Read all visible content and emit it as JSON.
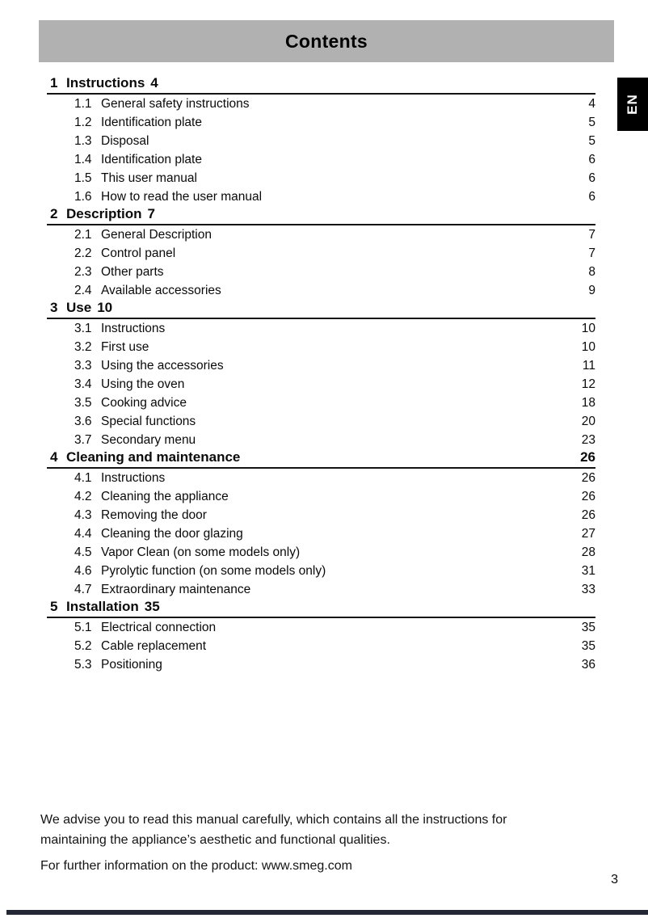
{
  "colors": {
    "header_bar": "#b1b1b1",
    "text": "#0a0a0a",
    "language_tab_bg": "#000000",
    "language_tab_text": "#ffffff",
    "bottom_bar": "#242834"
  },
  "header": {
    "title": "Contents"
  },
  "language_tab": {
    "label": "EN"
  },
  "toc": {
    "sections": [
      {
        "number": "1",
        "title": "Instructions",
        "inline_page": "4",
        "page": "",
        "items": [
          {
            "number": "1.1",
            "title": "General safety instructions",
            "page": "4"
          },
          {
            "number": "1.2",
            "title": "Identification plate",
            "page": "5"
          },
          {
            "number": "1.3",
            "title": "Disposal",
            "page": "5"
          },
          {
            "number": "1.4",
            "title": "Identification plate",
            "page": "6"
          },
          {
            "number": "1.5",
            "title": "This user manual",
            "page": "6"
          },
          {
            "number": "1.6",
            "title": "How to read the user manual",
            "page": "6"
          }
        ]
      },
      {
        "number": "2",
        "title": "Description",
        "inline_page": "7",
        "page": "",
        "items": [
          {
            "number": "2.1",
            "title": "General Description",
            "page": "7"
          },
          {
            "number": "2.2",
            "title": "Control panel",
            "page": "7"
          },
          {
            "number": "2.3",
            "title": "Other parts",
            "page": "8"
          },
          {
            "number": "2.4",
            "title": "Available accessories",
            "page": "9"
          }
        ]
      },
      {
        "number": "3",
        "title": "Use",
        "inline_page": "10",
        "page": "",
        "items": [
          {
            "number": "3.1",
            "title": "Instructions",
            "page": "10"
          },
          {
            "number": "3.2",
            "title": "First use",
            "page": "10"
          },
          {
            "number": "3.3",
            "title": "Using the accessories",
            "page": "11"
          },
          {
            "number": "3.4",
            "title": "Using the oven",
            "page": "12"
          },
          {
            "number": "3.5",
            "title": "Cooking advice",
            "page": "18"
          },
          {
            "number": "3.6",
            "title": "Special functions",
            "page": "20"
          },
          {
            "number": "3.7",
            "title": "Secondary menu",
            "page": "23"
          }
        ]
      },
      {
        "number": "4",
        "title": "Cleaning and maintenance",
        "inline_page": "",
        "page": "26",
        "items": [
          {
            "number": "4.1",
            "title": "Instructions",
            "page": "26"
          },
          {
            "number": "4.2",
            "title": "Cleaning the appliance",
            "page": "26"
          },
          {
            "number": "4.3",
            "title": "Removing the door",
            "page": "26"
          },
          {
            "number": "4.4",
            "title": "Cleaning the door glazing",
            "page": "27"
          },
          {
            "number": "4.5",
            "title": "Vapor Clean (on some models only)",
            "page": "28"
          },
          {
            "number": "4.6",
            "title": "Pyrolytic function (on some models only)",
            "page": "31"
          },
          {
            "number": "4.7",
            "title": "Extraordinary maintenance",
            "page": "33"
          }
        ]
      },
      {
        "number": "5",
        "title": "Installation",
        "inline_page": "35",
        "page": "",
        "items": [
          {
            "number": "5.1",
            "title": "Electrical connection",
            "page": "35"
          },
          {
            "number": "5.2",
            "title": "Cable replacement",
            "page": "35"
          },
          {
            "number": "5.3",
            "title": "Positioning",
            "page": "36"
          }
        ]
      }
    ]
  },
  "footer": {
    "note": "We advise you to read this manual carefully, which contains all the instructions for\nmaintaining the appliance’s aesthetic and functional qualities.",
    "info": "For further information on the product: www.smeg.com",
    "page_number": "3"
  }
}
